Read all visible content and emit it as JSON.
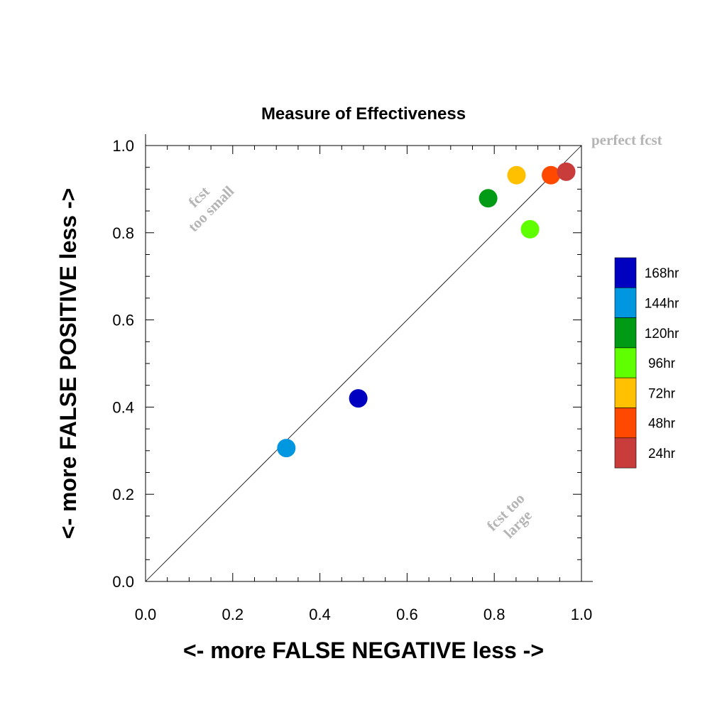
{
  "chart_data": {
    "type": "scatter",
    "title": "Measure of Effectiveness",
    "xlabel": "<- more   FALSE NEGATIVE   less ->",
    "ylabel": "<- more   FALSE POSITIVE   less ->",
    "xlim": [
      0.0,
      1.0
    ],
    "ylim": [
      0.0,
      1.0
    ],
    "x_ticks": [
      "0.0",
      "0.2",
      "0.4",
      "0.6",
      "0.8",
      "1.0"
    ],
    "y_ticks": [
      "0.0",
      "0.2",
      "0.4",
      "0.6",
      "0.8",
      "1.0"
    ],
    "grid": false,
    "reference_line": "diagonal",
    "legend_position": "right",
    "annotations": {
      "perfect": "perfect fcst",
      "too_small": [
        "fcst",
        "too small"
      ],
      "too_large": [
        "fcst too",
        "large"
      ]
    },
    "series": [
      {
        "name": "168hr",
        "color": "#0000c0",
        "x": 0.488,
        "y": 0.42
      },
      {
        "name": "144hr",
        "color": "#0096e0",
        "x": 0.323,
        "y": 0.306
      },
      {
        "name": "120hr",
        "color": "#009a14",
        "x": 0.786,
        "y": 0.879
      },
      {
        "name": "96hr",
        "color": "#60ff00",
        "x": 0.882,
        "y": 0.808
      },
      {
        "name": "72hr",
        "color": "#ffc000",
        "x": 0.851,
        "y": 0.932
      },
      {
        "name": "48hr",
        "color": "#ff4800",
        "x": 0.93,
        "y": 0.932
      },
      {
        "name": "24hr",
        "color": "#c83c3c",
        "x": 0.965,
        "y": 0.94
      }
    ]
  }
}
